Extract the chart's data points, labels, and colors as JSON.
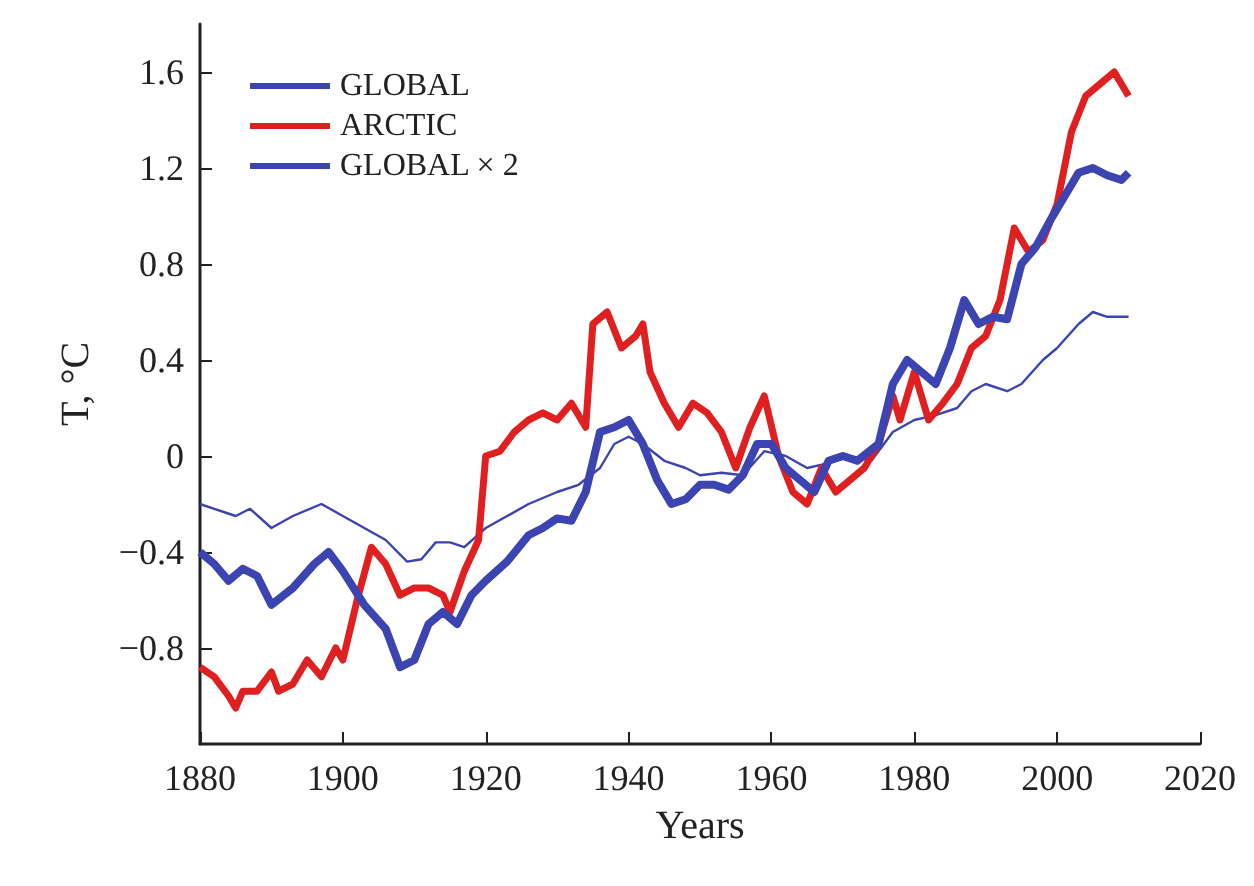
{
  "chart_data": {
    "type": "line",
    "xlabel": "Years",
    "ylabel": "T, °C",
    "xlim": [
      1880,
      2020
    ],
    "xticks": [
      1880,
      1900,
      1920,
      1940,
      1960,
      1980,
      2000,
      2020
    ],
    "ylim": [
      -1.2,
      1.8
    ],
    "yticks": [
      {
        "value": -0.8,
        "label": "−0.8"
      },
      {
        "value": -0.4,
        "label": "−0.4"
      },
      0,
      0.4,
      0.8,
      1.2,
      1.6
    ],
    "grid": false,
    "legend": "top left",
    "marker": "none",
    "line_style": "solid",
    "series": [
      {
        "name": "GLOBAL",
        "color": "#3b44b0",
        "x": [
          1880,
          1882,
          1885,
          1887,
          1890,
          1893,
          1897,
          1900,
          1903,
          1906,
          1909,
          1911,
          1913,
          1915,
          1917,
          1920,
          1923,
          1926,
          1930,
          1933,
          1936,
          1938,
          1940,
          1942,
          1945,
          1948,
          1950,
          1953,
          1956,
          1959,
          1962,
          1965,
          1968,
          1971,
          1974,
          1977,
          1980,
          1983,
          1986,
          1988,
          1990,
          1993,
          1995,
          1998,
          2000,
          2003,
          2005,
          2007,
          2010
        ],
        "values": [
          -0.2,
          -0.22,
          -0.25,
          -0.22,
          -0.3,
          -0.25,
          -0.2,
          -0.25,
          -0.3,
          -0.35,
          -0.44,
          -0.43,
          -0.36,
          -0.36,
          -0.38,
          -0.3,
          -0.25,
          -0.2,
          -0.15,
          -0.12,
          -0.05,
          0.05,
          0.08,
          0.05,
          -0.02,
          -0.05,
          -0.08,
          -0.07,
          -0.08,
          0.02,
          0.0,
          -0.05,
          -0.03,
          0.0,
          -0.02,
          0.1,
          0.15,
          0.17,
          0.2,
          0.27,
          0.3,
          0.27,
          0.3,
          0.4,
          0.45,
          0.55,
          0.6,
          0.58,
          0.58
        ]
      },
      {
        "name": "ARCTIC",
        "color": "#e02020",
        "x": [
          1880,
          1882,
          1884,
          1885,
          1886,
          1888,
          1890,
          1891,
          1893,
          1895,
          1897,
          1899,
          1900,
          1902,
          1904,
          1906,
          1908,
          1910,
          1912,
          1914,
          1915,
          1917,
          1919,
          1920,
          1922,
          1924,
          1926,
          1928,
          1930,
          1932,
          1934,
          1935,
          1937,
          1939,
          1941,
          1942,
          1943,
          1945,
          1947,
          1949,
          1951,
          1953,
          1955,
          1957,
          1959,
          1961,
          1963,
          1965,
          1967,
          1969,
          1971,
          1973,
          1975,
          1977,
          1978,
          1980,
          1982,
          1984,
          1986,
          1988,
          1990,
          1992,
          1994,
          1996,
          1998,
          2000,
          2002,
          2004,
          2006,
          2008,
          2010
        ],
        "values": [
          -0.88,
          -0.92,
          -1.0,
          -1.05,
          -0.98,
          -0.98,
          -0.9,
          -0.98,
          -0.95,
          -0.85,
          -0.92,
          -0.8,
          -0.85,
          -0.6,
          -0.38,
          -0.45,
          -0.58,
          -0.55,
          -0.55,
          -0.58,
          -0.65,
          -0.48,
          -0.35,
          0.0,
          0.02,
          0.1,
          0.15,
          0.18,
          0.15,
          0.22,
          0.12,
          0.55,
          0.6,
          0.45,
          0.5,
          0.55,
          0.35,
          0.22,
          0.12,
          0.22,
          0.18,
          0.1,
          -0.05,
          0.12,
          0.25,
          0.0,
          -0.15,
          -0.2,
          -0.05,
          -0.15,
          -0.1,
          -0.05,
          0.05,
          0.25,
          0.15,
          0.35,
          0.15,
          0.22,
          0.3,
          0.45,
          0.5,
          0.65,
          0.95,
          0.85,
          0.9,
          1.05,
          1.35,
          1.5,
          1.55,
          1.6,
          1.5
        ]
      },
      {
        "name": "GLOBAL × 2",
        "color": "#3b44b0",
        "x": [
          1880,
          1882,
          1884,
          1886,
          1888,
          1890,
          1893,
          1896,
          1898,
          1900,
          1903,
          1906,
          1908,
          1910,
          1912,
          1914,
          1916,
          1918,
          1920,
          1923,
          1926,
          1928,
          1930,
          1932,
          1934,
          1936,
          1938,
          1940,
          1942,
          1944,
          1946,
          1948,
          1950,
          1952,
          1954,
          1956,
          1958,
          1960,
          1962,
          1964,
          1966,
          1968,
          1970,
          1972,
          1975,
          1977,
          1979,
          1981,
          1983,
          1985,
          1987,
          1989,
          1991,
          1993,
          1995,
          1997,
          1999,
          2001,
          2003,
          2005,
          2007,
          2009,
          2010
        ],
        "values": [
          -0.4,
          -0.45,
          -0.52,
          -0.47,
          -0.5,
          -0.62,
          -0.55,
          -0.45,
          -0.4,
          -0.48,
          -0.62,
          -0.72,
          -0.88,
          -0.85,
          -0.7,
          -0.65,
          -0.7,
          -0.58,
          -0.52,
          -0.44,
          -0.33,
          -0.3,
          -0.26,
          -0.27,
          -0.15,
          0.1,
          0.12,
          0.15,
          0.05,
          -0.1,
          -0.2,
          -0.18,
          -0.12,
          -0.12,
          -0.14,
          -0.08,
          0.05,
          0.05,
          -0.05,
          -0.1,
          -0.15,
          -0.02,
          0.0,
          -0.02,
          0.05,
          0.3,
          0.4,
          0.35,
          0.3,
          0.45,
          0.65,
          0.55,
          0.58,
          0.57,
          0.8,
          0.87,
          0.98,
          1.08,
          1.18,
          1.2,
          1.17,
          1.15,
          1.18
        ]
      }
    ]
  }
}
